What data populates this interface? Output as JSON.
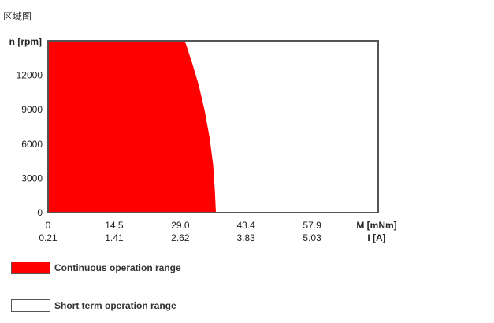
{
  "page": {
    "title": "区域图"
  },
  "colors": {
    "continuous": "#ff0000",
    "short_term": "#ffffff",
    "frame": "#555555"
  },
  "chart_data": {
    "type": "area",
    "title": "",
    "ylabel": "n [rpm]",
    "xlabel": "M [mNm]",
    "secondary_xlabel": "I [A]",
    "ylim": [
      0,
      15000
    ],
    "xlim": [
      0,
      72.4
    ],
    "y_ticks": [
      0,
      3000,
      6000,
      9000,
      12000
    ],
    "y_tick_labels": [
      "0",
      "3000",
      "6000",
      "9000",
      "12000"
    ],
    "x_ticks": [
      0,
      14.5,
      29.0,
      43.4,
      57.9
    ],
    "x_tick_labels": [
      "0",
      "14.5",
      "29.0",
      "43.4",
      "57.9"
    ],
    "x2_tick_labels": [
      "0.21",
      "1.41",
      "2.62",
      "3.83",
      "5.03"
    ],
    "grid": false,
    "legend_position": "bottom-left",
    "series": [
      {
        "name": "Continuous operation range",
        "x": [
          0,
          30.0,
          31.5,
          33.0,
          34.3,
          35.4,
          36.2,
          36.6,
          36.8,
          0
        ],
        "y": [
          15000,
          15000,
          13200,
          11200,
          9000,
          6600,
          4200,
          1800,
          0,
          0
        ]
      },
      {
        "name": "Short term operation range",
        "x": [],
        "y": []
      }
    ]
  },
  "legend": {
    "items": [
      {
        "label": "Continuous operation range"
      },
      {
        "label": "Short term operation range"
      }
    ]
  }
}
